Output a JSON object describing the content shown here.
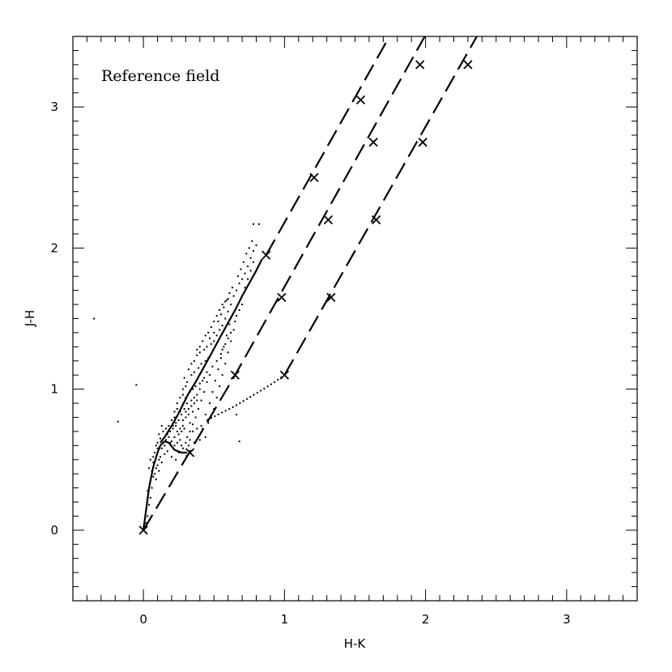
{
  "chart_data": {
    "type": "scatter",
    "xlabel": "H-K",
    "ylabel": "J-H",
    "xlim": [
      -0.5,
      3.5
    ],
    "ylim": [
      -0.5,
      3.5
    ],
    "xticks": [
      "0",
      "1",
      "2",
      "3"
    ],
    "yticks": [
      "0",
      "1",
      "2",
      "3"
    ],
    "annotation": "Reference field",
    "grid": false,
    "lines": [
      {
        "style": "solid",
        "points": [
          [
            0.0,
            0.0
          ],
          [
            0.02,
            0.15
          ],
          [
            0.04,
            0.3
          ],
          [
            0.07,
            0.45
          ],
          [
            0.1,
            0.55
          ],
          [
            0.12,
            0.6
          ],
          [
            0.15,
            0.63
          ],
          [
            0.18,
            0.62
          ],
          [
            0.22,
            0.57
          ],
          [
            0.27,
            0.55
          ],
          [
            0.31,
            0.55
          ]
        ]
      },
      {
        "style": "solid",
        "points": [
          [
            0.12,
            0.62
          ],
          [
            0.15,
            0.66
          ],
          [
            0.2,
            0.74
          ],
          [
            0.24,
            0.81
          ],
          [
            0.28,
            0.89
          ],
          [
            0.32,
            0.97
          ],
          [
            0.37,
            1.05
          ],
          [
            0.42,
            1.14
          ],
          [
            0.48,
            1.25
          ],
          [
            0.54,
            1.36
          ],
          [
            0.6,
            1.47
          ],
          [
            0.65,
            1.56
          ],
          [
            0.7,
            1.66
          ],
          [
            0.75,
            1.75
          ],
          [
            0.8,
            1.84
          ],
          [
            0.84,
            1.92
          ]
        ]
      },
      {
        "style": "dotted",
        "points": [
          [
            0.45,
            0.78
          ],
          [
            0.55,
            0.83
          ],
          [
            0.65,
            0.88
          ],
          [
            0.75,
            0.94
          ],
          [
            0.85,
            1.0
          ],
          [
            0.93,
            1.05
          ],
          [
            1.0,
            1.1
          ]
        ]
      },
      {
        "style": "dashed",
        "points": [
          [
            0.87,
            1.95
          ],
          [
            1.8,
            3.6
          ]
        ]
      },
      {
        "style": "dashed",
        "points": [
          [
            0.0,
            0.0
          ],
          [
            0.65,
            1.1
          ],
          [
            2.05,
            3.6
          ]
        ]
      },
      {
        "style": "dashed",
        "points": [
          [
            1.0,
            1.1
          ],
          [
            2.42,
            3.6
          ]
        ]
      }
    ],
    "markers": [
      [
        0.0,
        0.0
      ],
      [
        0.33,
        0.55
      ],
      [
        0.87,
        1.95
      ],
      [
        1.21,
        2.5
      ],
      [
        1.54,
        3.05
      ],
      [
        0.65,
        1.1
      ],
      [
        0.98,
        1.65
      ],
      [
        1.31,
        2.2
      ],
      [
        1.63,
        2.75
      ],
      [
        1.96,
        3.3
      ],
      [
        1.0,
        1.1
      ],
      [
        1.33,
        1.65
      ],
      [
        1.65,
        2.2
      ],
      [
        1.98,
        2.75
      ],
      [
        2.3,
        3.3
      ]
    ],
    "points": [
      [
        -0.35,
        1.5
      ],
      [
        -0.05,
        1.03
      ],
      [
        -0.18,
        0.77
      ],
      [
        0.68,
        0.63
      ],
      [
        0.66,
        0.82
      ],
      [
        0.78,
        2.17
      ],
      [
        0.82,
        2.17
      ],
      [
        0.02,
        0.05
      ],
      [
        0.03,
        0.1
      ],
      [
        0.04,
        0.18
      ],
      [
        0.05,
        0.23
      ],
      [
        0.03,
        0.28
      ],
      [
        0.06,
        0.3
      ],
      [
        0.05,
        0.35
      ],
      [
        0.07,
        0.38
      ],
      [
        0.08,
        0.4
      ],
      [
        0.06,
        0.42
      ],
      [
        0.09,
        0.44
      ],
      [
        0.1,
        0.46
      ],
      [
        0.07,
        0.48
      ],
      [
        0.11,
        0.5
      ],
      [
        0.12,
        0.52
      ],
      [
        0.08,
        0.55
      ],
      [
        0.1,
        0.58
      ],
      [
        0.13,
        0.58
      ],
      [
        0.15,
        0.6
      ],
      [
        0.14,
        0.62
      ],
      [
        0.16,
        0.64
      ],
      [
        0.12,
        0.65
      ],
      [
        0.18,
        0.66
      ],
      [
        0.17,
        0.68
      ],
      [
        0.2,
        0.63
      ],
      [
        0.22,
        0.6
      ],
      [
        0.24,
        0.62
      ],
      [
        0.26,
        0.64
      ],
      [
        0.19,
        0.7
      ],
      [
        0.21,
        0.72
      ],
      [
        0.23,
        0.74
      ],
      [
        0.25,
        0.68
      ],
      [
        0.27,
        0.7
      ],
      [
        0.29,
        0.72
      ],
      [
        0.31,
        0.66
      ],
      [
        0.33,
        0.7
      ],
      [
        0.35,
        0.75
      ],
      [
        0.28,
        0.78
      ],
      [
        0.3,
        0.8
      ],
      [
        0.32,
        0.82
      ],
      [
        0.26,
        0.84
      ],
      [
        0.24,
        0.86
      ],
      [
        0.22,
        0.8
      ],
      [
        0.34,
        0.88
      ],
      [
        0.36,
        0.9
      ],
      [
        0.38,
        0.92
      ],
      [
        0.3,
        0.94
      ],
      [
        0.28,
        0.96
      ],
      [
        0.33,
        0.98
      ],
      [
        0.35,
        1.0
      ],
      [
        0.37,
        1.02
      ],
      [
        0.4,
        1.04
      ],
      [
        0.42,
        1.06
      ],
      [
        0.31,
        1.05
      ],
      [
        0.29,
        1.08
      ],
      [
        0.34,
        1.1
      ],
      [
        0.36,
        1.12
      ],
      [
        0.39,
        1.15
      ],
      [
        0.41,
        1.18
      ],
      [
        0.44,
        1.2
      ],
      [
        0.46,
        1.22
      ],
      [
        0.38,
        1.24
      ],
      [
        0.4,
        1.26
      ],
      [
        0.43,
        1.28
      ],
      [
        0.45,
        1.3
      ],
      [
        0.48,
        1.32
      ],
      [
        0.5,
        1.34
      ],
      [
        0.47,
        1.36
      ],
      [
        0.52,
        1.38
      ],
      [
        0.5,
        1.4
      ],
      [
        0.54,
        1.42
      ],
      [
        0.56,
        1.45
      ],
      [
        0.53,
        1.48
      ],
      [
        0.58,
        1.5
      ],
      [
        0.55,
        1.53
      ],
      [
        0.6,
        1.55
      ],
      [
        0.57,
        1.58
      ],
      [
        0.62,
        1.6
      ],
      [
        0.59,
        1.63
      ],
      [
        0.64,
        1.66
      ],
      [
        0.61,
        1.68
      ],
      [
        0.66,
        1.7
      ],
      [
        0.63,
        1.72
      ],
      [
        0.68,
        1.75
      ],
      [
        0.7,
        1.78
      ],
      [
        0.67,
        1.8
      ],
      [
        0.72,
        1.82
      ],
      [
        0.69,
        1.85
      ],
      [
        0.74,
        1.87
      ],
      [
        0.71,
        1.9
      ],
      [
        0.76,
        1.93
      ],
      [
        0.73,
        1.96
      ],
      [
        0.78,
        1.98
      ],
      [
        0.75,
        2.0
      ],
      [
        0.8,
        2.02
      ],
      [
        0.77,
        2.05
      ],
      [
        0.25,
        0.55
      ],
      [
        0.28,
        0.58
      ],
      [
        0.32,
        0.6
      ],
      [
        0.36,
        0.62
      ],
      [
        0.4,
        0.64
      ],
      [
        0.44,
        0.66
      ],
      [
        0.2,
        0.52
      ],
      [
        0.23,
        0.5
      ],
      [
        0.42,
        0.72
      ],
      [
        0.46,
        0.76
      ],
      [
        0.48,
        0.8
      ],
      [
        0.44,
        0.82
      ],
      [
        0.5,
        0.86
      ],
      [
        0.47,
        0.9
      ],
      [
        0.52,
        0.94
      ],
      [
        0.49,
        0.98
      ],
      [
        0.54,
        1.02
      ],
      [
        0.51,
        1.06
      ],
      [
        0.56,
        1.1
      ],
      [
        0.53,
        1.14
      ],
      [
        0.58,
        1.18
      ],
      [
        0.55,
        1.22
      ],
      [
        0.6,
        1.26
      ],
      [
        0.57,
        1.3
      ],
      [
        0.62,
        1.34
      ],
      [
        0.59,
        1.38
      ],
      [
        0.64,
        1.42
      ],
      [
        0.61,
        1.46
      ],
      [
        0.45,
        1.05
      ],
      [
        0.43,
        0.98
      ],
      [
        0.41,
        0.92
      ],
      [
        0.39,
        0.86
      ],
      [
        0.37,
        0.8
      ],
      [
        0.35,
        0.84
      ],
      [
        0.33,
        0.76
      ],
      [
        0.31,
        0.9
      ],
      [
        0.29,
        0.86
      ],
      [
        0.27,
        0.82
      ],
      [
        0.25,
        0.78
      ],
      [
        0.23,
        0.76
      ],
      [
        0.21,
        0.74
      ],
      [
        0.19,
        0.62
      ],
      [
        0.17,
        0.56
      ],
      [
        0.15,
        0.54
      ],
      [
        0.13,
        0.48
      ],
      [
        0.11,
        0.42
      ],
      [
        0.09,
        0.36
      ],
      [
        0.1,
        0.62
      ],
      [
        0.14,
        0.7
      ],
      [
        0.16,
        0.72
      ],
      [
        0.18,
        0.74
      ],
      [
        0.2,
        0.78
      ],
      [
        0.22,
        0.84
      ],
      [
        0.24,
        0.9
      ],
      [
        0.26,
        0.94
      ],
      [
        0.28,
        1.0
      ],
      [
        0.3,
        1.02
      ],
      [
        0.32,
        1.14
      ],
      [
        0.34,
        1.18
      ],
      [
        0.36,
        1.2
      ],
      [
        0.38,
        1.28
      ],
      [
        0.4,
        1.3
      ],
      [
        0.42,
        1.34
      ],
      [
        0.44,
        1.38
      ],
      [
        0.46,
        1.4
      ],
      [
        0.48,
        1.44
      ],
      [
        0.5,
        1.48
      ],
      [
        0.52,
        1.52
      ],
      [
        0.54,
        1.56
      ],
      [
        0.56,
        1.6
      ],
      [
        0.58,
        1.62
      ],
      [
        0.6,
        1.64
      ],
      [
        0.55,
        1.25
      ],
      [
        0.52,
        1.2
      ],
      [
        0.49,
        1.16
      ],
      [
        0.47,
        1.1
      ],
      [
        0.45,
        1.12
      ],
      [
        0.43,
        1.08
      ],
      [
        0.4,
        1.0
      ],
      [
        0.38,
        0.96
      ],
      [
        0.36,
        0.94
      ],
      [
        0.34,
        0.92
      ],
      [
        0.32,
        0.86
      ],
      [
        0.3,
        0.84
      ],
      [
        0.28,
        0.74
      ],
      [
        0.26,
        0.72
      ],
      [
        0.24,
        0.7
      ],
      [
        0.22,
        0.66
      ],
      [
        0.7,
        1.6
      ],
      [
        0.72,
        1.72
      ],
      [
        0.74,
        1.78
      ],
      [
        0.76,
        1.84
      ],
      [
        0.78,
        1.9
      ],
      [
        0.66,
        1.52
      ],
      [
        0.68,
        1.56
      ],
      [
        0.65,
        1.48
      ],
      [
        0.62,
        1.4
      ],
      [
        0.6,
        1.36
      ],
      [
        0.58,
        1.32
      ],
      [
        0.56,
        1.28
      ],
      [
        0.35,
        0.7
      ],
      [
        0.38,
        0.72
      ],
      [
        0.41,
        0.74
      ],
      [
        0.27,
        0.6
      ],
      [
        0.3,
        0.62
      ],
      [
        0.33,
        0.64
      ],
      [
        0.05,
        0.5
      ],
      [
        0.04,
        0.44
      ],
      [
        0.07,
        0.52
      ],
      [
        0.09,
        0.6
      ],
      [
        0.11,
        0.68
      ],
      [
        0.13,
        0.74
      ]
    ]
  }
}
